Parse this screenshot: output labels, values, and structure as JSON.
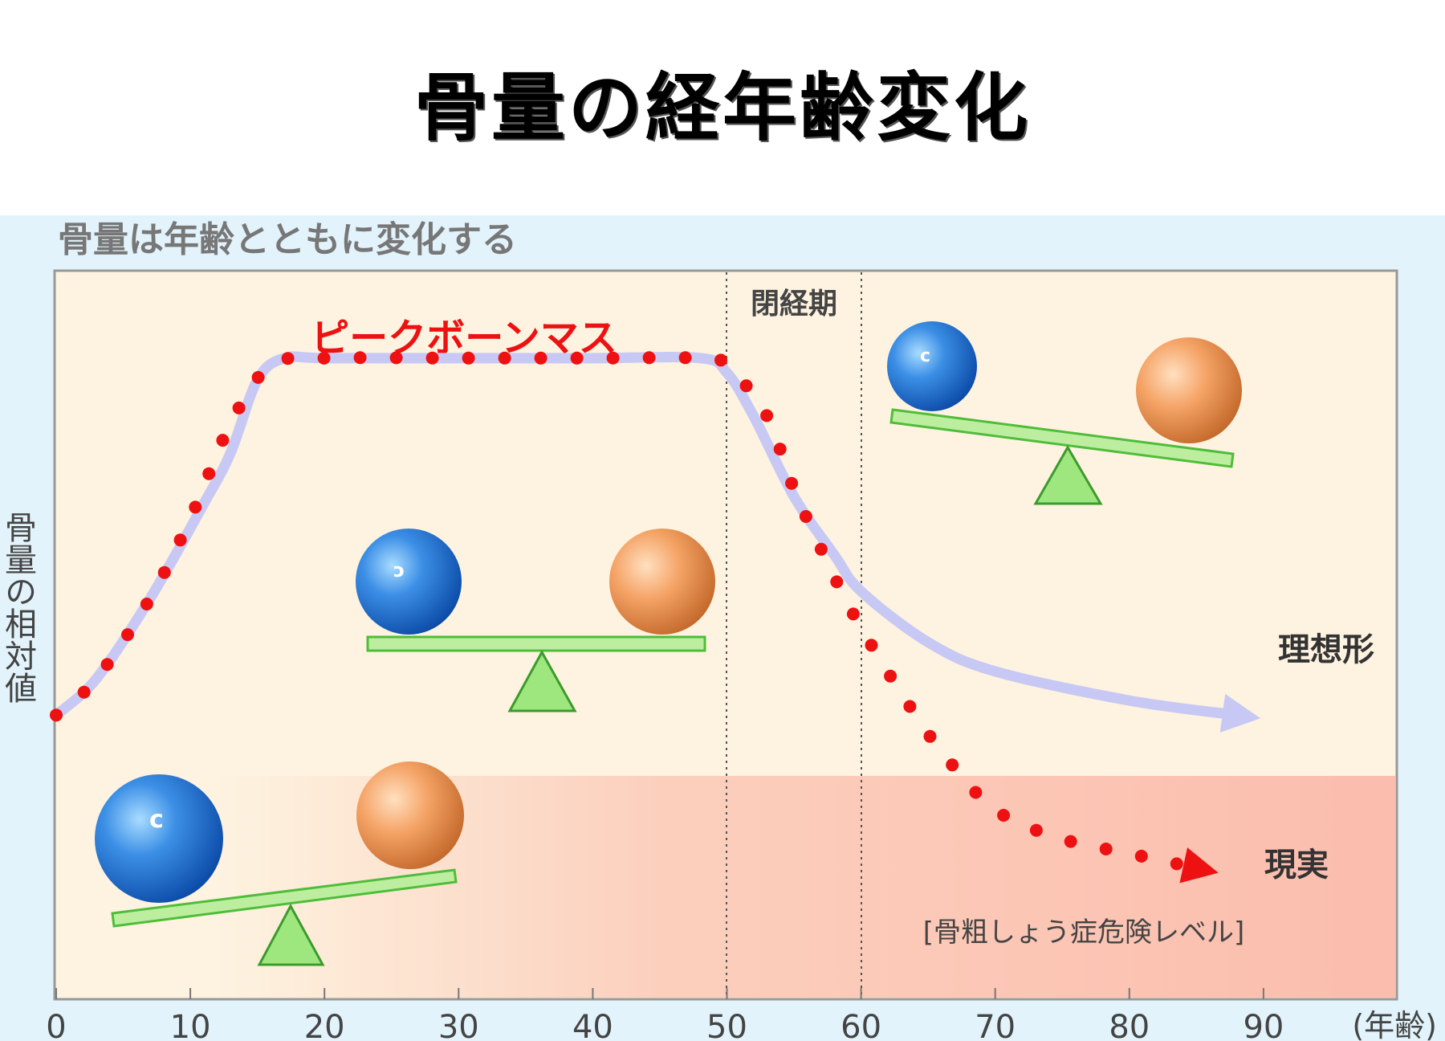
{
  "page_title": "骨量の経年齢変化",
  "chart_data": {
    "type": "line",
    "title": "骨量は年齢とともに変化する",
    "xlabel": "(年齢)",
    "ylabel": "骨量の相対値",
    "xlim": [
      0,
      100
    ],
    "ylim": [
      0,
      100
    ],
    "x_ticks": [
      0,
      10,
      20,
      30,
      40,
      50,
      60,
      70,
      80,
      90
    ],
    "grid": false,
    "annotations": {
      "peak_label": "ピークボーンマス",
      "menopause_label": "閉経期",
      "menopause_range": [
        50,
        60
      ],
      "risk_label": "[骨粗しょう症危険レベル]",
      "risk_threshold": 30
    },
    "series": [
      {
        "name": "理想形",
        "style": "solid-arrow",
        "color": "#c8c8f5",
        "x": [
          0,
          3,
          7,
          11,
          13,
          15,
          17,
          20,
          30,
          40,
          48,
          50,
          52,
          55,
          58,
          60,
          65,
          70,
          80,
          88
        ],
        "y": [
          39,
          44,
          55,
          68,
          75,
          85,
          88,
          88,
          88,
          88,
          88,
          86,
          80,
          69,
          61,
          56,
          49,
          45,
          41,
          39
        ]
      },
      {
        "name": "現実",
        "style": "dotted-arrow",
        "color": "#ee1111",
        "x": [
          0,
          3,
          7,
          10,
          13,
          16,
          20,
          30,
          40,
          48,
          50,
          53,
          55,
          58,
          60,
          63,
          66,
          70,
          75,
          80,
          85
        ],
        "y": [
          39,
          44,
          55,
          66,
          79,
          87,
          88,
          88,
          88,
          88,
          87,
          80,
          70,
          58,
          51,
          42,
          34,
          26,
          22,
          20,
          18
        ]
      }
    ]
  },
  "colors": {
    "panel_bg": "#e2f3fb",
    "plot_bg": "#fdf3e0",
    "risk_zone": "#fbbdad",
    "accent_red": "#ee1111",
    "ideal_line": "#c8c8f5"
  }
}
